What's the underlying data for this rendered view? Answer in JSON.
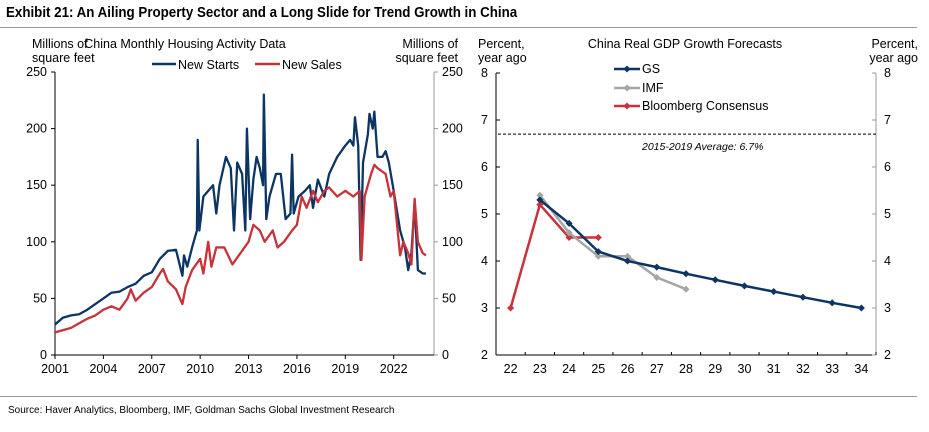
{
  "title": "Exhibit 21: An Ailing Property Sector and a Long Slide for Trend Growth in China",
  "source": "Source: Haver Analytics, Bloomberg, IMF, Goldman Sachs Global Investment Research",
  "colors": {
    "navy": "#0c3563",
    "red": "#c8323a",
    "gray": "#a6a6a6"
  },
  "chart_data": [
    {
      "type": "line",
      "title": "China Monthly Housing Activity Data",
      "ylabel_left": [
        "Millions of",
        "square feet"
      ],
      "ylabel_right": [
        "Millions of",
        "square feet"
      ],
      "ylim": [
        0,
        250
      ],
      "yticks": [
        0,
        50,
        100,
        150,
        200,
        250
      ],
      "xticks": [
        2001,
        2004,
        2007,
        2010,
        2013,
        2016,
        2019,
        2022
      ],
      "xlim": [
        2001,
        2024.5
      ],
      "legend": "top-center",
      "series": [
        {
          "name": "New Starts",
          "color": "#0c3563",
          "points": [
            [
              2001,
              27
            ],
            [
              2001.5,
              33
            ],
            [
              2002,
              35
            ],
            [
              2002.5,
              36
            ],
            [
              2003,
              40
            ],
            [
              2003.5,
              45
            ],
            [
              2004,
              50
            ],
            [
              2004.5,
              55
            ],
            [
              2005,
              56
            ],
            [
              2005.5,
              60
            ],
            [
              2006,
              63
            ],
            [
              2006.5,
              70
            ],
            [
              2007,
              73
            ],
            [
              2007.5,
              85
            ],
            [
              2008,
              92
            ],
            [
              2008.5,
              93
            ],
            [
              2008.9,
              70
            ],
            [
              2009,
              88
            ],
            [
              2009.2,
              78
            ],
            [
              2009.5,
              95
            ],
            [
              2009.8,
              110
            ],
            [
              2009.85,
              190
            ],
            [
              2009.95,
              110
            ],
            [
              2010.2,
              140
            ],
            [
              2010.5,
              145
            ],
            [
              2010.8,
              150
            ],
            [
              2011,
              125
            ],
            [
              2011.2,
              150
            ],
            [
              2011.6,
              175
            ],
            [
              2011.9,
              165
            ],
            [
              2012.1,
              110
            ],
            [
              2012.3,
              170
            ],
            [
              2012.6,
              160
            ],
            [
              2012.8,
              110
            ],
            [
              2012.9,
              200
            ],
            [
              2013.1,
              120
            ],
            [
              2013.3,
              155
            ],
            [
              2013.5,
              175
            ],
            [
              2013.7,
              165
            ],
            [
              2013.9,
              150
            ],
            [
              2013.95,
              230
            ],
            [
              2014.1,
              120
            ],
            [
              2014.3,
              140
            ],
            [
              2014.7,
              160
            ],
            [
              2015,
              160
            ],
            [
              2015.3,
              120
            ],
            [
              2015.6,
              125
            ],
            [
              2015.7,
              177
            ],
            [
              2015.8,
              125
            ],
            [
              2016.1,
              140
            ],
            [
              2016.5,
              145
            ],
            [
              2016.8,
              150
            ],
            [
              2017,
              130
            ],
            [
              2017.3,
              155
            ],
            [
              2017.7,
              140
            ],
            [
              2018,
              160
            ],
            [
              2018.5,
              175
            ],
            [
              2019,
              185
            ],
            [
              2019.3,
              190
            ],
            [
              2019.5,
              185
            ],
            [
              2019.6,
              210
            ],
            [
              2019.8,
              185
            ],
            [
              2019.95,
              84
            ],
            [
              2020.1,
              170
            ],
            [
              2020.4,
              195
            ],
            [
              2020.5,
              213
            ],
            [
              2020.7,
              200
            ],
            [
              2020.8,
              215
            ],
            [
              2021,
              175
            ],
            [
              2021.3,
              175
            ],
            [
              2021.5,
              180
            ],
            [
              2021.7,
              170
            ],
            [
              2022,
              145
            ],
            [
              2022.4,
              110
            ],
            [
              2022.7,
              95
            ],
            [
              2022.9,
              75
            ],
            [
              2023.1,
              90
            ],
            [
              2023.3,
              135
            ],
            [
              2023.5,
              75
            ],
            [
              2023.8,
              72
            ],
            [
              2024,
              72
            ]
          ]
        },
        {
          "name": "New Sales",
          "color": "#c8323a",
          "points": [
            [
              2001,
              20
            ],
            [
              2001.5,
              22
            ],
            [
              2002,
              24
            ],
            [
              2002.5,
              28
            ],
            [
              2003,
              32
            ],
            [
              2003.5,
              35
            ],
            [
              2004,
              40
            ],
            [
              2004.5,
              43
            ],
            [
              2005,
              40
            ],
            [
              2005.5,
              50
            ],
            [
              2005.7,
              58
            ],
            [
              2006,
              48
            ],
            [
              2006.5,
              55
            ],
            [
              2007,
              60
            ],
            [
              2007.5,
              72
            ],
            [
              2007.7,
              76
            ],
            [
              2008,
              65
            ],
            [
              2008.5,
              58
            ],
            [
              2008.9,
              45
            ],
            [
              2009.1,
              60
            ],
            [
              2009.5,
              75
            ],
            [
              2010,
              85
            ],
            [
              2010.2,
              72
            ],
            [
              2010.5,
              100
            ],
            [
              2010.7,
              78
            ],
            [
              2011,
              95
            ],
            [
              2011.5,
              95
            ],
            [
              2012,
              80
            ],
            [
              2012.5,
              90
            ],
            [
              2013,
              100
            ],
            [
              2013.3,
              115
            ],
            [
              2013.7,
              110
            ],
            [
              2014,
              100
            ],
            [
              2014.5,
              110
            ],
            [
              2014.8,
              95
            ],
            [
              2015.2,
              100
            ],
            [
              2015.7,
              110
            ],
            [
              2016,
              115
            ],
            [
              2016.3,
              140
            ],
            [
              2016.6,
              130
            ],
            [
              2017,
              145
            ],
            [
              2017.3,
              135
            ],
            [
              2017.7,
              145
            ],
            [
              2018,
              148
            ],
            [
              2018.5,
              140
            ],
            [
              2019,
              145
            ],
            [
              2019.5,
              140
            ],
            [
              2019.9,
              145
            ],
            [
              2020,
              84
            ],
            [
              2020.2,
              140
            ],
            [
              2020.6,
              160
            ],
            [
              2020.8,
              168
            ],
            [
              2021,
              165
            ],
            [
              2021.5,
              160
            ],
            [
              2021.8,
              140
            ],
            [
              2022,
              145
            ],
            [
              2022.4,
              88
            ],
            [
              2022.6,
              100
            ],
            [
              2022.9,
              90
            ],
            [
              2023.1,
              80
            ],
            [
              2023.3,
              138
            ],
            [
              2023.5,
              100
            ],
            [
              2023.8,
              90
            ],
            [
              2024,
              88
            ]
          ]
        }
      ]
    },
    {
      "type": "line",
      "title": "China Real GDP Growth Forecasts",
      "ylabel_left": [
        "Percent,",
        "year ago"
      ],
      "ylabel_right": [
        "Percent,",
        "year ago"
      ],
      "ylim": [
        2,
        8
      ],
      "yticks": [
        2,
        3,
        4,
        5,
        6,
        7,
        8
      ],
      "categories": [
        "22",
        "23",
        "24",
        "25",
        "26",
        "27",
        "28",
        "29",
        "30",
        "31",
        "32",
        "33",
        "34"
      ],
      "legend": "top-left",
      "reference_line": {
        "value": 6.7,
        "label": "2015-2019 Average: 6.7%"
      },
      "series": [
        {
          "name": "GS",
          "color": "#0c3563",
          "values": [
            null,
            5.3,
            4.8,
            4.2,
            4.0,
            3.87,
            3.73,
            3.6,
            3.47,
            3.35,
            3.23,
            3.11,
            3.0
          ]
        },
        {
          "name": "IMF",
          "color": "#a6a6a6",
          "values": [
            null,
            5.4,
            4.6,
            4.1,
            4.1,
            3.65,
            3.4,
            null,
            null,
            null,
            null,
            null,
            null
          ]
        },
        {
          "name": "Bloomberg Consensus",
          "color": "#c8323a",
          "values": [
            3.0,
            5.2,
            4.5,
            4.5,
            null,
            null,
            null,
            null,
            null,
            null,
            null,
            null,
            null
          ]
        }
      ]
    }
  ]
}
